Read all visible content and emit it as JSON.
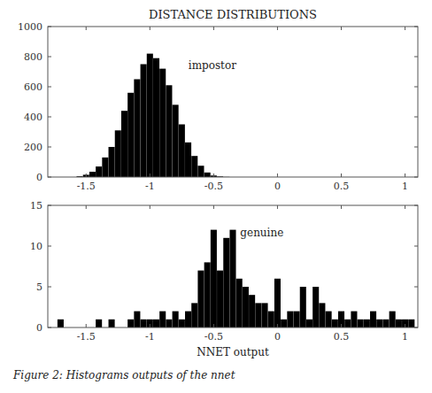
{
  "chart_data": [
    {
      "type": "bar",
      "title": "DISTANCE DISTRIBUTIONS",
      "annotations": [
        "impostor"
      ],
      "color": "#000000",
      "x": [
        -1.55,
        -1.5,
        -1.45,
        -1.4,
        -1.35,
        -1.3,
        -1.25,
        -1.2,
        -1.15,
        -1.1,
        -1.05,
        -1.0,
        -0.95,
        -0.9,
        -0.85,
        -0.8,
        -0.75,
        -0.7,
        -0.65,
        -0.6,
        -0.55,
        -0.5,
        -0.45,
        -0.4
      ],
      "values": [
        5,
        15,
        35,
        70,
        130,
        200,
        310,
        440,
        560,
        650,
        750,
        820,
        790,
        720,
        610,
        480,
        350,
        230,
        140,
        75,
        30,
        10,
        4,
        1
      ],
      "bin_width": 0.05,
      "xlim": [
        -1.8,
        1.1
      ],
      "xticks": [
        -1.5,
        -1,
        -0.5,
        0,
        0.5,
        1
      ],
      "ylim": [
        0,
        1000
      ],
      "yticks": [
        0,
        200,
        400,
        600,
        800,
        1000
      ]
    },
    {
      "type": "bar",
      "xlabel": "NNET output",
      "annotations": [
        "genuine"
      ],
      "caption": "Figure 2: Histograms outputs of the nnet",
      "color": "#000000",
      "x": [
        -1.7,
        -1.6,
        -1.5,
        -1.4,
        -1.35,
        -1.3,
        -1.25,
        -1.2,
        -1.15,
        -1.1,
        -1.05,
        -1.0,
        -0.95,
        -0.9,
        -0.85,
        -0.8,
        -0.75,
        -0.7,
        -0.65,
        -0.6,
        -0.55,
        -0.5,
        -0.45,
        -0.4,
        -0.35,
        -0.3,
        -0.25,
        -0.2,
        -0.15,
        -0.1,
        -0.05,
        0.0,
        0.05,
        0.1,
        0.15,
        0.2,
        0.25,
        0.3,
        0.35,
        0.4,
        0.45,
        0.5,
        0.55,
        0.6,
        0.65,
        0.7,
        0.75,
        0.8,
        0.85,
        0.9,
        0.95,
        1.0,
        1.05
      ],
      "values": [
        1,
        0,
        0,
        1,
        0,
        1,
        0,
        0,
        1,
        2,
        1,
        1,
        1,
        2,
        1,
        2,
        1,
        2,
        3,
        7,
        8,
        12,
        7,
        11,
        12,
        6,
        5,
        4,
        3,
        3,
        2,
        6,
        1,
        2,
        2,
        5,
        1,
        5,
        3,
        2,
        1,
        2,
        1,
        2,
        1,
        1,
        2,
        1,
        1,
        2,
        1,
        1,
        1
      ],
      "bin_width": 0.05,
      "xlim": [
        -1.8,
        1.1
      ],
      "xticks": [
        -1.5,
        -1,
        -0.5,
        0,
        0.5,
        1
      ],
      "ylim": [
        0,
        15
      ],
      "yticks": [
        0,
        5,
        10,
        15
      ]
    }
  ]
}
